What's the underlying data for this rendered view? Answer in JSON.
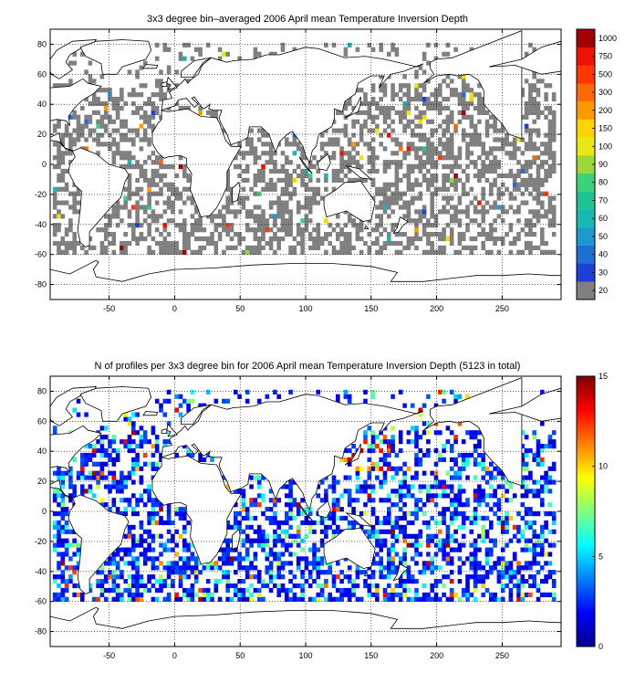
{
  "chart_data": [
    {
      "type": "heatmap",
      "title": "3x3 degree bin–averaged 2006 April mean Temperature Inversion Depth",
      "xlabel": "",
      "ylabel": "",
      "xlim": [
        -95,
        295
      ],
      "ylim": [
        -90,
        90
      ],
      "xticks": [
        -50,
        0,
        50,
        100,
        150,
        200,
        250
      ],
      "yticks": [
        80,
        60,
        40,
        20,
        0,
        -20,
        -40,
        -60,
        -80
      ],
      "grid": true,
      "colorbar": {
        "type": "discrete",
        "labels": [
          "20",
          "30",
          "40",
          "50",
          "60",
          "70",
          "80",
          "90",
          "100",
          "150",
          "200",
          "300",
          "500",
          "750",
          "1000"
        ],
        "colors": [
          "#808080",
          "#1e3fd6",
          "#1f6fd2",
          "#1c9ad0",
          "#18b9b5",
          "#1fc495",
          "#3cd27a",
          "#9ad83a",
          "#e8e815",
          "#ffd500",
          "#ff9a00",
          "#ff6a00",
          "#ff3600",
          "#ee1200",
          "#a50000"
        ]
      }
    },
    {
      "type": "heatmap",
      "title": "N of profiles per 3x3 degree bin for 2006 April mean Temperature Inversion Depth  (5123 in total)",
      "xlabel": "",
      "ylabel": "",
      "xlim": [
        -95,
        295
      ],
      "ylim": [
        -90,
        90
      ],
      "xticks": [
        -50,
        0,
        50,
        100,
        150,
        200,
        250
      ],
      "yticks": [
        80,
        60,
        40,
        20,
        0,
        -20,
        -40,
        -60,
        -80
      ],
      "grid": true,
      "colorbar": {
        "type": "continuous",
        "range": [
          0,
          15
        ],
        "ticks": [
          "15",
          "10",
          "5",
          "0"
        ]
      }
    }
  ]
}
